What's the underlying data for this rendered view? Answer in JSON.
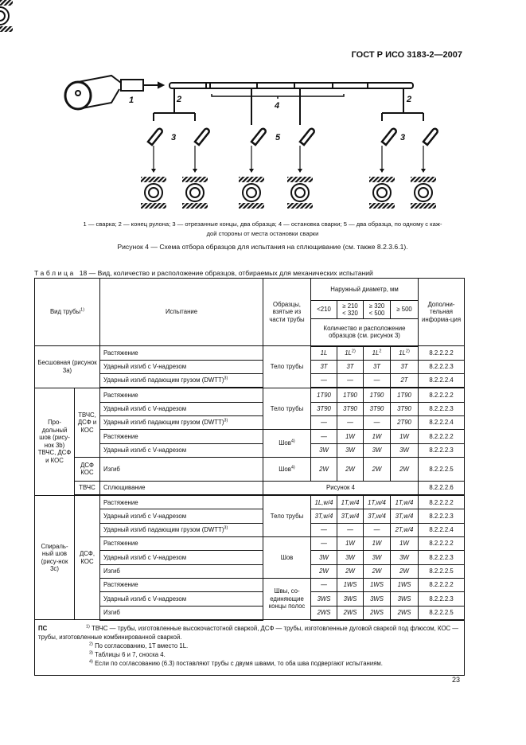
{
  "header": {
    "standard": "ГОСТ Р ИСО 3183-2—2007"
  },
  "figure": {
    "labels": [
      "1",
      "2",
      "2",
      "3",
      "3",
      "4",
      "5"
    ],
    "legend_line1": "1 — сварка; 2 — конец рулона; 3 — отрезанные концы, два образца; 4 — остановка сварки; 5 — два образца, по одному с каж-",
    "legend_line2": "дой стороны от места остановки сварки",
    "caption": "Рисунок 4 — Схема отбора образцов для испытания на сплющивание (см. также 8.2.3.6.1)."
  },
  "table": {
    "caption_prefix": "Таблица",
    "caption": "18 — Вид, количество и расположение образцов, отбираемых для механических испытаний",
    "head": {
      "pipe_type": "Вид трубы",
      "pipe_type_sup": "1)",
      "test": "Испытание",
      "samples": "Образцы, взятые из части трубы",
      "diameter": "Наружный диаметр, мм",
      "d1": "<210",
      "d2a": "≥ 210",
      "d2b": "< 320",
      "d3a": "≥ 320",
      "d3b": "< 500",
      "d4": "≥ 500",
      "count": "Количество и расположение образцов (см. рисунок 3)",
      "extra": "Дополни-тельная информа-ция"
    },
    "groups": {
      "seamless": "Бесшовная (рисунок 3a)",
      "longitudinal": "Про-дольный шов (рису-нок 3b) ТВЧС, ДСФ и КОС",
      "long_sub1": "ТВЧС, ДСФ и КОС",
      "long_sub2": "ДСФ КОС",
      "long_sub3": "ТВЧС",
      "spiral": "Спираль-ный шов (рису-нок 3c)",
      "spiral_sub": "ДСФ, КОС"
    },
    "samples": {
      "body": "Тело трубы",
      "seam": "Шов",
      "seam_sup": "4)",
      "strip": "Швы, со-единяющие концы полос",
      "fig4": "Рисунок 4"
    },
    "tests": {
      "tension": "Растяжение",
      "charpy": "Ударный изгиб с V-надрезом",
      "dwtt": "Ударный изгиб падающим грузом (DWTT)",
      "dwtt_sup": "3)",
      "bend": "Изгиб",
      "flatten": "Сплющивание"
    },
    "rows": [
      {
        "v": [
          "1L",
          "1L",
          "1L",
          "1L"
        ],
        "s": [
          "",
          "2)",
          "2",
          "2)"
        ],
        "ref": "8.2.2.2.2"
      },
      {
        "v": [
          "3T",
          "3T",
          "3T",
          "3T"
        ],
        "ref": "8.2.2.2.3"
      },
      {
        "v": [
          "—",
          "—",
          "—",
          "2T"
        ],
        "ref": "8.2.2.2.4"
      },
      {
        "v": [
          "1T90",
          "1T90",
          "1T90",
          "1T90"
        ],
        "ref": "8.2.2.2.2"
      },
      {
        "v": [
          "3T90",
          "3T90",
          "3T90",
          "3T90"
        ],
        "ref": "8.2.2.2.3"
      },
      {
        "v": [
          "—",
          "—",
          "—",
          "2T90"
        ],
        "ref": "8.2.2.2.4"
      },
      {
        "v": [
          "—",
          "1W",
          "1W",
          "1W"
        ],
        "ref": "8.2.2.2.2"
      },
      {
        "v": [
          "3W",
          "3W",
          "3W",
          "3W"
        ],
        "ref": "8.2.2.2.3"
      },
      {
        "v": [
          "2W",
          "2W",
          "2W",
          "2W"
        ],
        "ref": "8.2.2.2.5"
      },
      {
        "ref": "8.2.2.2.6"
      },
      {
        "v": [
          "1L,w/4",
          "1T,w/4",
          "1T,w/4",
          "1T,w/4"
        ],
        "ref": "8.2.2.2.2"
      },
      {
        "v": [
          "3T,w/4",
          "3T,w/4",
          "3T,w/4",
          "3T,w/4"
        ],
        "ref": "8.2.2.2.3"
      },
      {
        "v": [
          "—",
          "—",
          "—",
          "2T,w/4"
        ],
        "ref": "8.2.2.2.4"
      },
      {
        "v": [
          "—",
          "1W",
          "1W",
          "1W"
        ],
        "ref": "8.2.2.2.2"
      },
      {
        "v": [
          "3W",
          "3W",
          "3W",
          "3W"
        ],
        "ref": "8.2.2.2.3"
      },
      {
        "v": [
          "2W",
          "2W",
          "2W",
          "2W"
        ],
        "ref": "8.2.2.2.5"
      },
      {
        "v": [
          "—",
          "1WS",
          "1WS",
          "1WS"
        ],
        "ref": "8.2.2.2.2"
      },
      {
        "v": [
          "3WS",
          "3WS",
          "3WS",
          "3WS"
        ],
        "ref": "8.2.2.2.3"
      },
      {
        "v": [
          "2WS",
          "2WS",
          "2WS",
          "2WS"
        ],
        "ref": "8.2.2.2.5"
      }
    ],
    "notes": {
      "label": "ПС",
      "items": [
        {
          "sup": "1)",
          "text": "ТВЧС — трубы, изготовленные высокочастотной сваркой, ДСФ — трубы, изготовленные дуговой сваркой под флюсом, КОС — трубы, изготовленные комбинированной сваркой."
        },
        {
          "sup": "2)",
          "text": "По согласованию, 1T вместо 1L."
        },
        {
          "sup": "3)",
          "text": "Таблицы 6 и 7, сноска 4."
        },
        {
          "sup": "4)",
          "text": "Если по согласованию (6.3) поставляют трубы с двумя швами, то оба шва подвергают испытаниям."
        }
      ]
    }
  },
  "page_number": "23"
}
